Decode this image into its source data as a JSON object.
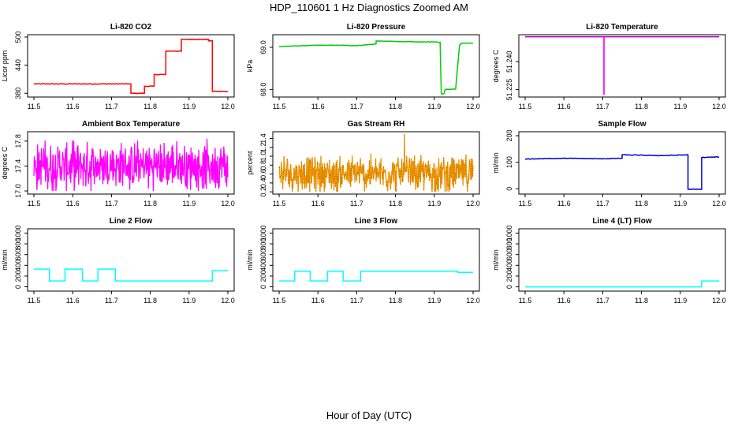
{
  "page": {
    "title": "HDP_110601  1 Hz Diagnostics Zoomed AM",
    "x_caption": "Hour of Day (UTC)"
  },
  "chart_data": [
    {
      "type": "line",
      "title": "Li-820 CO2",
      "ylabel": "Licor ppm",
      "color": "#ff0000",
      "xlim": [
        11.5,
        12.0
      ],
      "ylim": [
        372,
        505
      ],
      "x_ticks": [
        "11.5",
        "11.6",
        "11.7",
        "11.8",
        "11.9",
        "12.0"
      ],
      "y_ticks": [
        380,
        440,
        500
      ],
      "noise": 1.5,
      "series": [
        {
          "x": [
            11.5,
            11.75,
            11.75,
            11.785,
            11.785,
            11.81,
            11.81,
            11.84,
            11.84,
            11.88,
            11.88,
            11.95,
            11.95,
            11.96,
            11.96,
            12.0
          ],
          "y": [
            400,
            400,
            380,
            380,
            395,
            395,
            420,
            420,
            470,
            470,
            495,
            495,
            492,
            492,
            384,
            384
          ]
        }
      ]
    },
    {
      "type": "line",
      "title": "Li-820 Pressure",
      "ylabel": "kPa",
      "color": "#00cc00",
      "xlim": [
        11.5,
        12.0
      ],
      "ylim": [
        67.82,
        69.3
      ],
      "x_ticks": [
        "11.5",
        "11.6",
        "11.7",
        "11.8",
        "11.9",
        "12.0"
      ],
      "y_ticks": [
        68.0,
        69.0
      ],
      "y_tick_labels": [
        "68.0",
        "69.0"
      ],
      "noise": 0.01,
      "series": [
        {
          "x": [
            11.5,
            11.6,
            11.65,
            11.7,
            11.75,
            11.75,
            11.8,
            11.85,
            11.9,
            11.915,
            11.918,
            11.925,
            11.928,
            11.955,
            11.965,
            11.97,
            12.0
          ],
          "y": [
            69.02,
            69.05,
            69.05,
            69.04,
            69.08,
            69.15,
            69.14,
            69.13,
            69.13,
            69.12,
            67.9,
            67.9,
            68.0,
            68.01,
            69.05,
            69.1,
            69.1
          ]
        }
      ]
    },
    {
      "type": "line",
      "title": "Li-820 Temperature",
      "ylabel": "degrees C",
      "color": "#ff00ff",
      "xlim": [
        11.5,
        12.0
      ],
      "ylim": [
        51.221,
        51.2545
      ],
      "x_ticks": [
        "11.5",
        "11.6",
        "11.7",
        "11.8",
        "11.9",
        "12.0"
      ],
      "y_ticks": [
        51.225,
        51.24
      ],
      "y_tick_labels": [
        "51.225",
        "51.240"
      ],
      "noise": 0,
      "series": [
        {
          "x": [
            11.5,
            11.703,
            11.703,
            11.7035,
            11.7035,
            12.0
          ],
          "y": [
            51.2534,
            51.2534,
            51.2225,
            51.2225,
            51.2534,
            51.2534
          ]
        }
      ],
      "hline": {
        "y": 51.2534,
        "color": "#8800aa"
      }
    },
    {
      "type": "line",
      "title": "Ambient Box Temperature",
      "ylabel": "degrees C",
      "color": "#ff00ff",
      "xlim": [
        11.5,
        12.0
      ],
      "ylim": [
        16.95,
        17.95
      ],
      "x_ticks": [
        "11.5",
        "11.6",
        "11.7",
        "11.8",
        "11.9",
        "12.0"
      ],
      "y_ticks": [
        17.0,
        17.4,
        17.8
      ],
      "y_tick_labels": [
        "17.0",
        "17.4",
        "17.8"
      ],
      "band": {
        "low": 17.0,
        "high": 17.9,
        "center": 17.4
      }
    },
    {
      "type": "line",
      "title": "Gas Stream RH",
      "ylabel": "percent",
      "color": "#ff9900",
      "xlim": [
        11.5,
        12.0
      ],
      "ylim": [
        0.15,
        1.55
      ],
      "x_ticks": [
        "11.5",
        "11.6",
        "11.7",
        "11.8",
        "11.9",
        "12.0"
      ],
      "y_ticks": [
        0.2,
        0.4,
        0.6,
        0.8,
        1.0,
        1.2,
        1.4
      ],
      "y_tick_labels": [
        "0.2",
        "0.4",
        "0.6",
        "0.8",
        "1.0",
        "1.2",
        "1.4"
      ],
      "band": {
        "low": 0.2,
        "high": 1.2,
        "center": 0.6,
        "peak": 1.5
      },
      "overlay_color": "#886600"
    },
    {
      "type": "line",
      "title": "Sample Flow",
      "ylabel": "ml/min",
      "color": "#0000cc",
      "xlim": [
        11.5,
        12.0
      ],
      "ylim": [
        -20,
        215
      ],
      "x_ticks": [
        "11.5",
        "11.6",
        "11.7",
        "11.8",
        "11.9",
        "12.0"
      ],
      "y_ticks": [
        0,
        100,
        200
      ],
      "noise": 2,
      "series": [
        {
          "x": [
            11.5,
            11.6,
            11.7,
            11.75,
            11.75,
            11.85,
            11.92,
            11.92,
            11.955,
            11.955,
            12.0
          ],
          "y": [
            112,
            115,
            113,
            115,
            128,
            125,
            128,
            -2,
            -2,
            118,
            120
          ]
        }
      ]
    },
    {
      "type": "line",
      "title": "Line 2 Flow",
      "ylabel": "ml/min",
      "color": "#00ffff",
      "xlim": [
        11.5,
        12.0
      ],
      "ylim": [
        -80,
        1080
      ],
      "x_ticks": [
        "11.5",
        "11.6",
        "11.7",
        "11.8",
        "11.9",
        "12.0"
      ],
      "y_ticks": [
        0,
        200,
        400,
        600,
        800,
        1000
      ],
      "noise": 0,
      "series": [
        {
          "x": [
            11.5,
            11.54,
            11.54,
            11.58,
            11.58,
            11.625,
            11.625,
            11.665,
            11.665,
            11.71,
            11.71,
            11.96,
            11.96,
            12.0
          ],
          "y": [
            330,
            330,
            110,
            110,
            330,
            330,
            110,
            110,
            330,
            330,
            110,
            110,
            300,
            300
          ]
        }
      ]
    },
    {
      "type": "line",
      "title": "Line 3 Flow",
      "ylabel": "ml/min",
      "color": "#00ffff",
      "xlim": [
        11.5,
        12.0
      ],
      "ylim": [
        -80,
        1080
      ],
      "x_ticks": [
        "11.5",
        "11.6",
        "11.7",
        "11.8",
        "11.9",
        "12.0"
      ],
      "y_ticks": [
        0,
        200,
        400,
        600,
        800,
        1000
      ],
      "noise": 0,
      "series": [
        {
          "x": [
            11.5,
            11.54,
            11.54,
            11.58,
            11.58,
            11.625,
            11.625,
            11.665,
            11.665,
            11.71,
            11.71,
            11.96,
            11.96,
            12.0
          ],
          "y": [
            110,
            110,
            290,
            290,
            110,
            110,
            290,
            290,
            110,
            110,
            290,
            290,
            270,
            270
          ]
        }
      ]
    },
    {
      "type": "line",
      "title": "Line 4 (LT) Flow",
      "ylabel": "ml/min",
      "color": "#00ffff",
      "xlim": [
        11.5,
        12.0
      ],
      "ylim": [
        -80,
        1080
      ],
      "x_ticks": [
        "11.5",
        "11.6",
        "11.7",
        "11.8",
        "11.9",
        "12.0"
      ],
      "y_ticks": [
        0,
        200,
        400,
        600,
        800,
        1000
      ],
      "noise": 0,
      "series": [
        {
          "x": [
            11.5,
            11.955,
            11.955,
            12.0
          ],
          "y": [
            0,
            0,
            110,
            110
          ]
        }
      ]
    }
  ]
}
